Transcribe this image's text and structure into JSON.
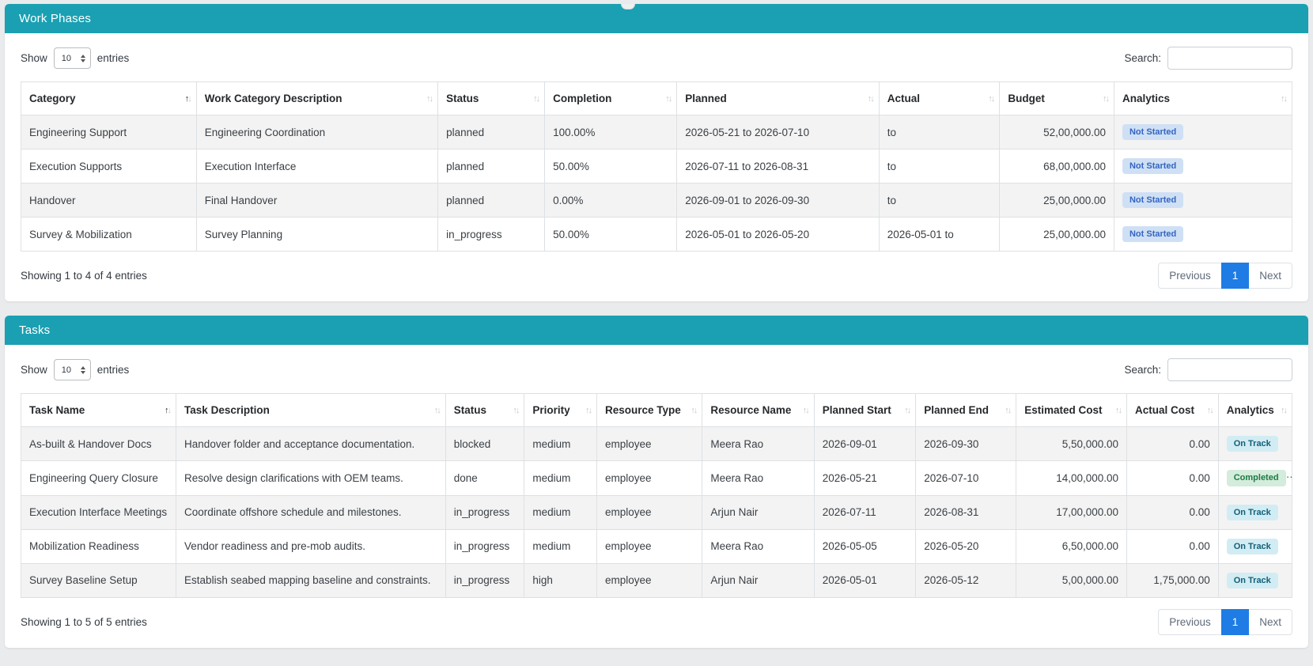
{
  "colors": {
    "panel_header_teal": "#1aa0b2",
    "pagination_active_blue": "#1f7ce4",
    "badge_not_started_bg": "#cfe0f5",
    "badge_not_started_text": "#3465c0",
    "badge_on_track_bg": "#d2ecf3",
    "badge_on_track_text": "#135f79",
    "badge_completed_bg": "#d4ecdb",
    "badge_completed_text": "#1b7a45"
  },
  "panels": [
    {
      "title": "Work Phases",
      "length_menu": {
        "show": "Show",
        "value": "10",
        "entries": "entries"
      },
      "search": {
        "label": "Search:",
        "value": ""
      },
      "columns": [
        {
          "label": "Category",
          "sorted": true
        },
        {
          "label": "Work Category Description"
        },
        {
          "label": "Status"
        },
        {
          "label": "Completion"
        },
        {
          "label": "Planned"
        },
        {
          "label": "Actual"
        },
        {
          "label": "Budget",
          "align": "right"
        },
        {
          "label": "Analytics"
        }
      ],
      "rows": [
        [
          "Engineering Support",
          "Engineering Coordination",
          "planned",
          "100.00%",
          "2026-05-21 to 2026-07-10",
          "to",
          "52,00,000.00",
          {
            "badge": "Not Started",
            "style": "not-started"
          }
        ],
        [
          "Execution Supports",
          "Execution Interface",
          "planned",
          "50.00%",
          "2026-07-11 to 2026-08-31",
          "to",
          "68,00,000.00",
          {
            "badge": "Not Started",
            "style": "not-started"
          }
        ],
        [
          "Handover",
          "Final Handover",
          "planned",
          "0.00%",
          "2026-09-01 to 2026-09-30",
          "to",
          "25,00,000.00",
          {
            "badge": "Not Started",
            "style": "not-started"
          }
        ],
        [
          "Survey & Mobilization",
          "Survey Planning",
          "in_progress",
          "50.00%",
          "2026-05-01 to 2026-05-20",
          "2026-05-01 to",
          "25,00,000.00",
          {
            "badge": "Not Started",
            "style": "not-started"
          }
        ]
      ],
      "info": "Showing 1 to 4 of 4 entries",
      "pagination": {
        "previous": "Previous",
        "current": "1",
        "next": "Next"
      }
    },
    {
      "title": "Tasks",
      "length_menu": {
        "show": "Show",
        "value": "10",
        "entries": "entries"
      },
      "search": {
        "label": "Search:",
        "value": ""
      },
      "columns": [
        {
          "label": "Task Name",
          "sorted": true
        },
        {
          "label": "Task Description"
        },
        {
          "label": "Status"
        },
        {
          "label": "Priority"
        },
        {
          "label": "Resource Type"
        },
        {
          "label": "Resource Name"
        },
        {
          "label": "Planned Start"
        },
        {
          "label": "Planned End"
        },
        {
          "label": "Estimated Cost",
          "align": "right"
        },
        {
          "label": "Actual Cost",
          "align": "right"
        },
        {
          "label": "Analytics"
        }
      ],
      "rows": [
        [
          "As-built & Handover Docs",
          "Handover folder and acceptance documentation.",
          "blocked",
          "medium",
          "employee",
          "Meera Rao",
          "2026-09-01",
          "2026-09-30",
          "5,50,000.00",
          "0.00",
          {
            "badge": "On Track",
            "style": "on-track"
          }
        ],
        [
          "Engineering Query Closure",
          "Resolve design clarifications with OEM teams.",
          "done",
          "medium",
          "employee",
          "Meera Rao",
          "2026-05-21",
          "2026-07-10",
          "14,00,000.00",
          "0.00",
          {
            "badge": "Completed",
            "style": "completed"
          }
        ],
        [
          "Execution Interface Meetings",
          "Coordinate offshore schedule and milestones.",
          "in_progress",
          "medium",
          "employee",
          "Arjun Nair",
          "2026-07-11",
          "2026-08-31",
          "17,00,000.00",
          "0.00",
          {
            "badge": "On Track",
            "style": "on-track"
          }
        ],
        [
          "Mobilization Readiness",
          "Vendor readiness and pre-mob audits.",
          "in_progress",
          "medium",
          "employee",
          "Meera Rao",
          "2026-05-05",
          "2026-05-20",
          "6,50,000.00",
          "0.00",
          {
            "badge": "On Track",
            "style": "on-track"
          }
        ],
        [
          "Survey Baseline Setup",
          "Establish seabed mapping baseline and constraints.",
          "in_progress",
          "high",
          "employee",
          "Arjun Nair",
          "2026-05-01",
          "2026-05-12",
          "5,00,000.00",
          "1,75,000.00",
          {
            "badge": "On Track",
            "style": "on-track"
          }
        ]
      ],
      "info": "Showing 1 to 5 of 5 entries",
      "pagination": {
        "previous": "Previous",
        "current": "1",
        "next": "Next"
      }
    }
  ]
}
